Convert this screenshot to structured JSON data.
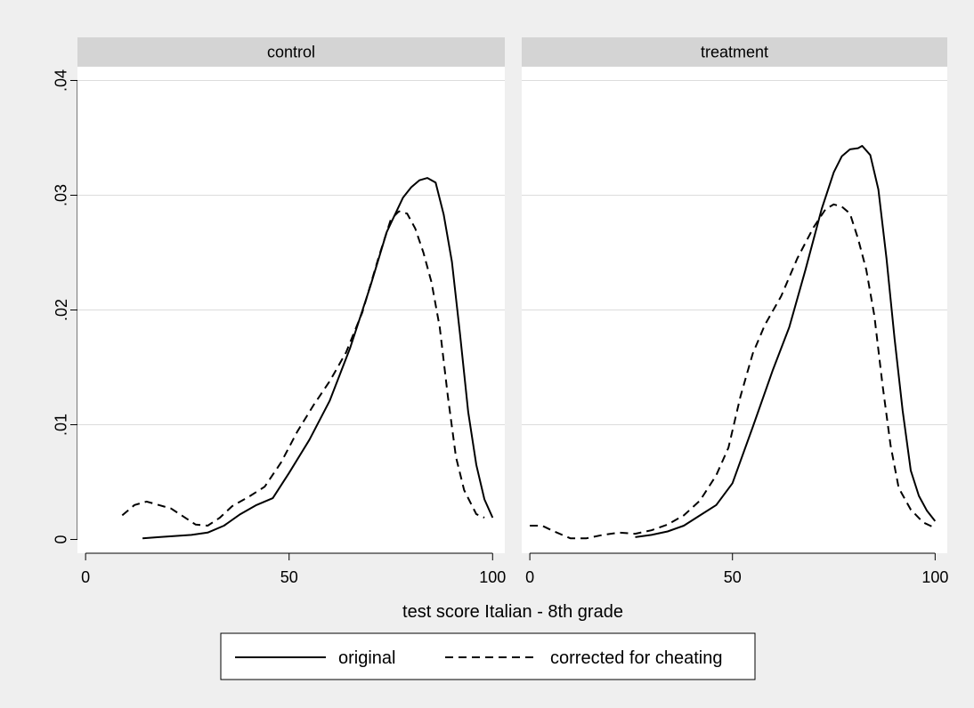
{
  "colors": {
    "background": "#efefef",
    "plot_region": "#ffffff",
    "panel_header": "#d4d4d4",
    "gridline": "#dcdcdc",
    "line": "#000000"
  },
  "chart_data": {
    "type": "line",
    "xlabel": "test score Italian - 8th grade",
    "ylabel": "",
    "xlim": [
      -2,
      103
    ],
    "ylim": [
      -0.0012,
      0.0412
    ],
    "x_ticks": [
      0,
      50,
      100
    ],
    "x_tick_labels": [
      "0",
      "50",
      "100"
    ],
    "y_ticks": [
      0,
      0.01,
      0.02,
      0.03,
      0.04
    ],
    "y_tick_labels": [
      "0",
      ".01",
      ".02",
      ".03",
      ".04"
    ],
    "grid": "horizontal",
    "legend": {
      "position": "bottom",
      "entries": [
        {
          "name": "original",
          "style": "solid"
        },
        {
          "name": "corrected for cheating",
          "style": "dashed"
        }
      ]
    },
    "panels": [
      {
        "title": "control",
        "series": [
          {
            "name": "original",
            "style": "solid",
            "points": [
              [
                14,
                0.0001
              ],
              [
                18,
                0.0002
              ],
              [
                22,
                0.0003
              ],
              [
                26,
                0.0004
              ],
              [
                30,
                0.0006
              ],
              [
                34,
                0.0012
              ],
              [
                38,
                0.0022
              ],
              [
                42,
                0.003
              ],
              [
                46,
                0.0036
              ],
              [
                50,
                0.0058
              ],
              [
                55,
                0.0087
              ],
              [
                60,
                0.0121
              ],
              [
                65,
                0.0167
              ],
              [
                70,
                0.0221
              ],
              [
                74,
                0.0268
              ],
              [
                78,
                0.0298
              ],
              [
                80,
                0.0307
              ],
              [
                82,
                0.0313
              ],
              [
                84,
                0.0315
              ],
              [
                86,
                0.0311
              ],
              [
                88,
                0.0283
              ],
              [
                90,
                0.0242
              ],
              [
                92,
                0.0179
              ],
              [
                94,
                0.0111
              ],
              [
                96,
                0.0065
              ],
              [
                98,
                0.0035
              ],
              [
                100,
                0.0019
              ]
            ]
          },
          {
            "name": "corrected for cheating",
            "style": "dashed",
            "points": [
              [
                9,
                0.0021
              ],
              [
                12,
                0.003
              ],
              [
                15,
                0.0033
              ],
              [
                18,
                0.003
              ],
              [
                21,
                0.0027
              ],
              [
                24,
                0.002
              ],
              [
                27,
                0.0013
              ],
              [
                30,
                0.0012
              ],
              [
                33,
                0.0019
              ],
              [
                36,
                0.0029
              ],
              [
                40,
                0.0037
              ],
              [
                44,
                0.0046
              ],
              [
                48,
                0.0067
              ],
              [
                52,
                0.0094
              ],
              [
                56,
                0.0117
              ],
              [
                60,
                0.0138
              ],
              [
                64,
                0.0163
              ],
              [
                68,
                0.0198
              ],
              [
                72,
                0.0246
              ],
              [
                75,
                0.0279
              ],
              [
                77,
                0.0286
              ],
              [
                79,
                0.0284
              ],
              [
                81,
                0.0271
              ],
              [
                83,
                0.025
              ],
              [
                85,
                0.0224
              ],
              [
                87,
                0.0185
              ],
              [
                89,
                0.0125
              ],
              [
                91,
                0.0072
              ],
              [
                93,
                0.0043
              ],
              [
                96,
                0.0022
              ],
              [
                98,
                0.0019
              ]
            ]
          }
        ]
      },
      {
        "title": "treatment",
        "series": [
          {
            "name": "original",
            "style": "solid",
            "points": [
              [
                26,
                0.0002
              ],
              [
                30,
                0.0004
              ],
              [
                34,
                0.0007
              ],
              [
                38,
                0.0012
              ],
              [
                42,
                0.0021
              ],
              [
                46,
                0.003
              ],
              [
                50,
                0.0049
              ],
              [
                55,
                0.0098
              ],
              [
                60,
                0.0148
              ],
              [
                64,
                0.0185
              ],
              [
                68,
                0.0235
              ],
              [
                72,
                0.0288
              ],
              [
                75,
                0.032
              ],
              [
                77,
                0.0334
              ],
              [
                79,
                0.034
              ],
              [
                81,
                0.0341
              ],
              [
                82,
                0.0343
              ],
              [
                84,
                0.0335
              ],
              [
                86,
                0.0305
              ],
              [
                88,
                0.0245
              ],
              [
                90,
                0.0175
              ],
              [
                92,
                0.0112
              ],
              [
                94,
                0.006
              ],
              [
                96,
                0.0038
              ],
              [
                98,
                0.0025
              ],
              [
                100,
                0.0016
              ]
            ]
          },
          {
            "name": "corrected for cheating",
            "style": "dashed",
            "points": [
              [
                0,
                0.0012
              ],
              [
                3,
                0.0012
              ],
              [
                6,
                0.0007
              ],
              [
                10,
                0.0001
              ],
              [
                14,
                0.0001
              ],
              [
                18,
                0.0004
              ],
              [
                22,
                0.0006
              ],
              [
                26,
                0.0005
              ],
              [
                30,
                0.0008
              ],
              [
                34,
                0.0013
              ],
              [
                38,
                0.0021
              ],
              [
                42,
                0.0034
              ],
              [
                46,
                0.0056
              ],
              [
                49,
                0.008
              ],
              [
                52,
                0.0125
              ],
              [
                55,
                0.0162
              ],
              [
                58,
                0.0187
              ],
              [
                62,
                0.0212
              ],
              [
                66,
                0.0245
              ],
              [
                70,
                0.0272
              ],
              [
                73,
                0.0288
              ],
              [
                75,
                0.0292
              ],
              [
                77,
                0.029
              ],
              [
                79,
                0.0284
              ],
              [
                81,
                0.0262
              ],
              [
                83,
                0.0235
              ],
              [
                85,
                0.0195
              ],
              [
                87,
                0.0135
              ],
              [
                89,
                0.0082
              ],
              [
                91,
                0.0045
              ],
              [
                94,
                0.0026
              ],
              [
                97,
                0.0015
              ],
              [
                100,
                0.001
              ]
            ]
          }
        ]
      }
    ]
  }
}
